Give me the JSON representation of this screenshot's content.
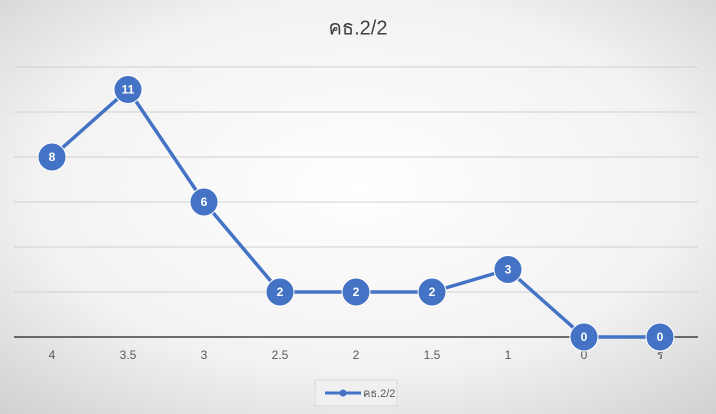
{
  "chart_data": {
    "type": "line",
    "title": "คธ.2/2",
    "categories": [
      "4",
      "3.5",
      "3",
      "2.5",
      "2",
      "1.5",
      "1",
      "0",
      "ร"
    ],
    "series": [
      {
        "name": "คธ.2/2",
        "color": "#4472c4",
        "values": [
          8,
          11,
          6,
          2,
          2,
          2,
          3,
          0,
          0
        ]
      }
    ],
    "ylim": [
      0,
      12
    ],
    "yticks": [
      0,
      2,
      4,
      6,
      8,
      10,
      12
    ],
    "grid": true,
    "legend": "bottom"
  }
}
